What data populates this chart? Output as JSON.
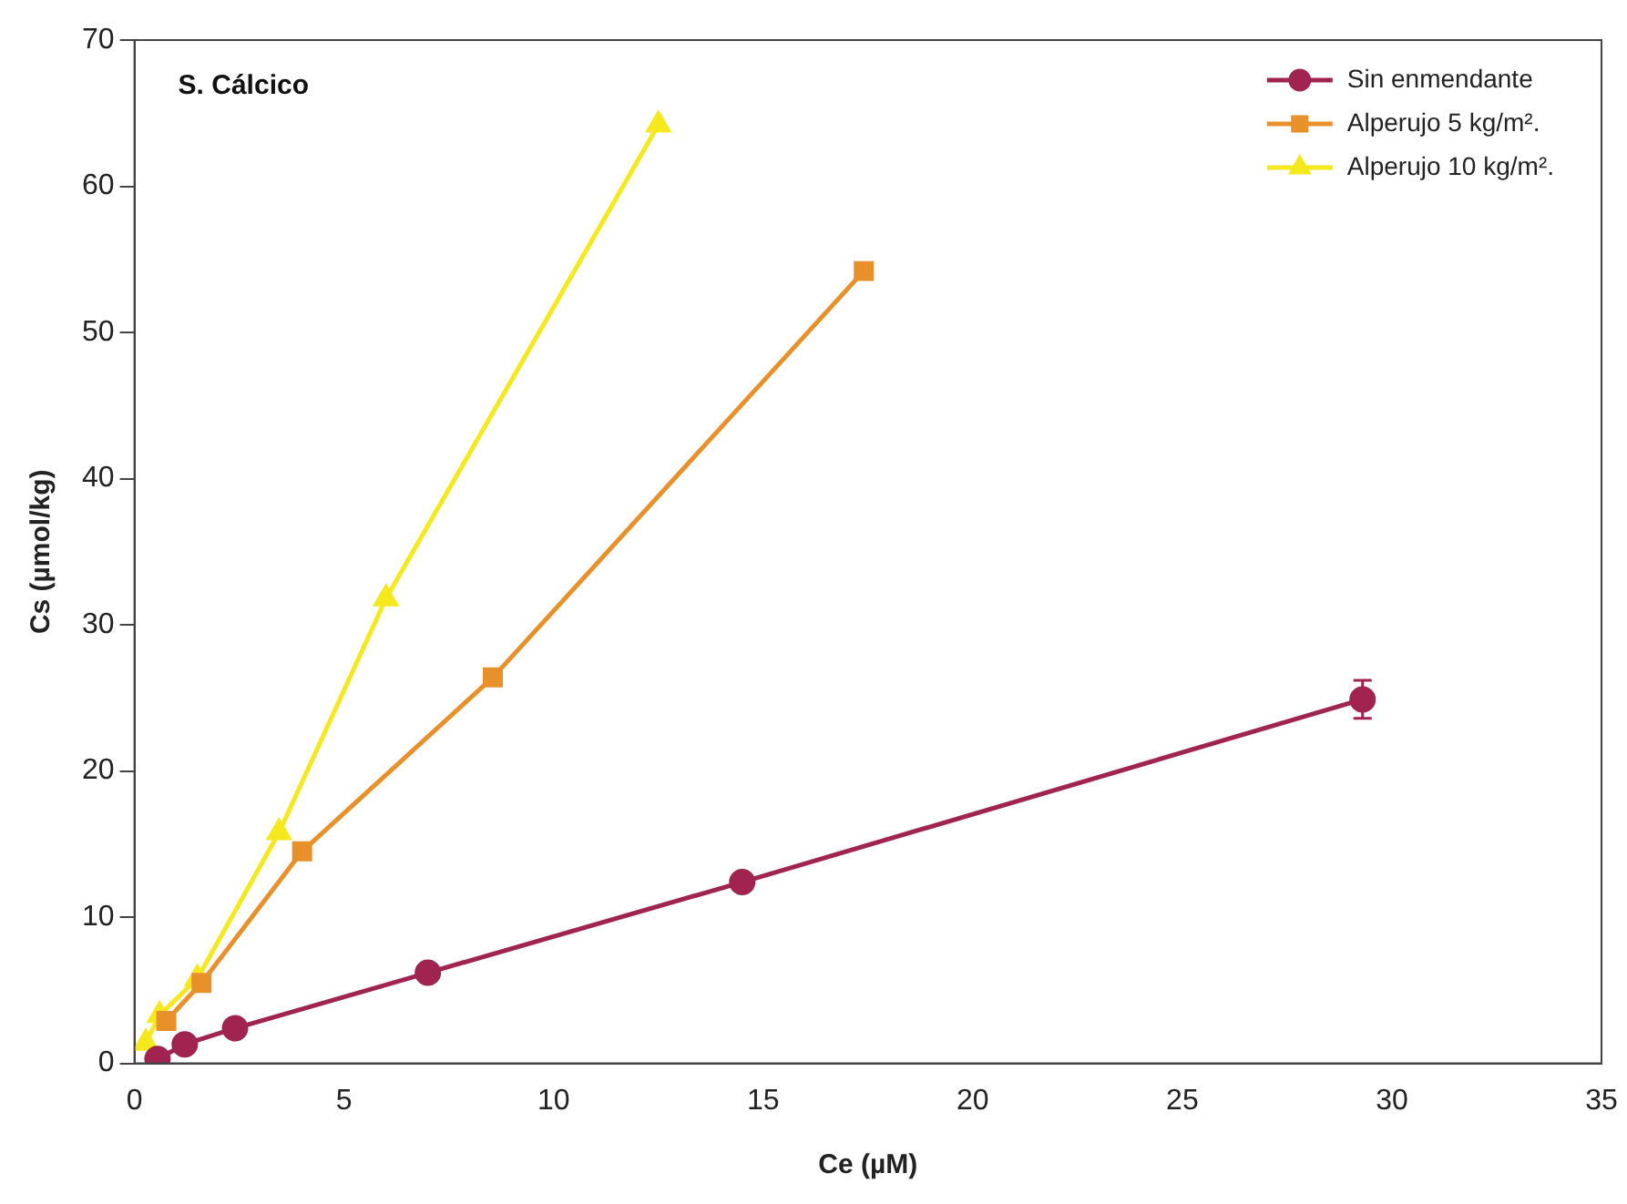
{
  "chart_data": {
    "type": "line",
    "xlabel": "Ce (µM)",
    "ylabel": "Cs (µmol/kg)",
    "annotations": [
      "S. Cálcico"
    ],
    "xlim": [
      0,
      35
    ],
    "xticks": [
      0,
      5,
      10,
      15,
      20,
      25,
      30,
      35
    ],
    "ylim": [
      0,
      70
    ],
    "yticks": [
      0,
      10,
      20,
      30,
      40,
      50,
      60,
      70
    ],
    "grid": false,
    "legend": "top right",
    "series": [
      {
        "name": "Sin enmendante",
        "color": "#a0244f",
        "marker": "circle",
        "x": [
          0.55,
          1.2,
          2.4,
          7.0,
          14.5,
          29.3
        ],
        "values": [
          0.3,
          1.3,
          2.4,
          6.2,
          12.4,
          24.9
        ],
        "errors": [
          null,
          null,
          null,
          null,
          null,
          1.3
        ]
      },
      {
        "name": "Alperujo 5 kg/m².",
        "color": "#e8902a",
        "marker": "square",
        "x": [
          0.76,
          1.6,
          4.0,
          8.55,
          17.4
        ],
        "values": [
          2.9,
          5.5,
          14.5,
          26.4,
          54.2
        ]
      },
      {
        "name": "Alperujo 10 kg/m².",
        "color": "#f5e81c",
        "marker": "triangle",
        "x": [
          0.27,
          0.6,
          1.5,
          3.45,
          6.0,
          12.5
        ],
        "values": [
          1.4,
          3.3,
          5.8,
          15.8,
          31.8,
          64.2
        ]
      }
    ]
  }
}
